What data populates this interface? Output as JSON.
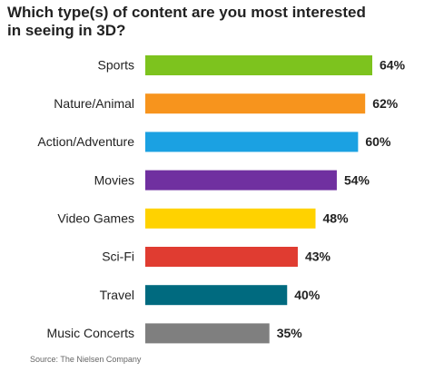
{
  "chart_data": {
    "type": "bar",
    "orientation": "horizontal",
    "title": "Which type(s) of content are you most interested in seeing in 3D?",
    "categories": [
      "Sports",
      "Nature/Animal",
      "Action/Adventure",
      "Movies",
      "Video Games",
      "Sci-Fi",
      "Travel",
      "Music Concerts"
    ],
    "values": [
      64,
      62,
      60,
      54,
      48,
      43,
      40,
      35
    ],
    "value_labels": [
      "64%",
      "62%",
      "60%",
      "54%",
      "48%",
      "43%",
      "40%",
      "35%"
    ],
    "colors": [
      "#7dc31e",
      "#f7941d",
      "#1ba1e2",
      "#7030a0",
      "#ffd200",
      "#e03c31",
      "#006a7f",
      "#7f7f7f"
    ],
    "source": "Source: The Nielsen Company"
  }
}
